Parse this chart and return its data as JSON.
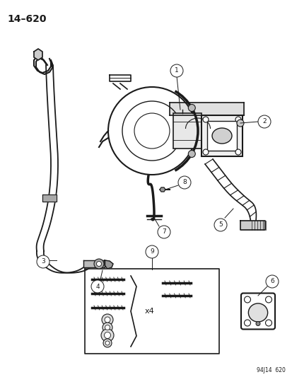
{
  "title": "14–620",
  "footnote": "94J14  620",
  "background_color": "#ffffff",
  "line_color": "#1a1a1a",
  "figsize": [
    4.14,
    5.33
  ],
  "dpi": 100
}
